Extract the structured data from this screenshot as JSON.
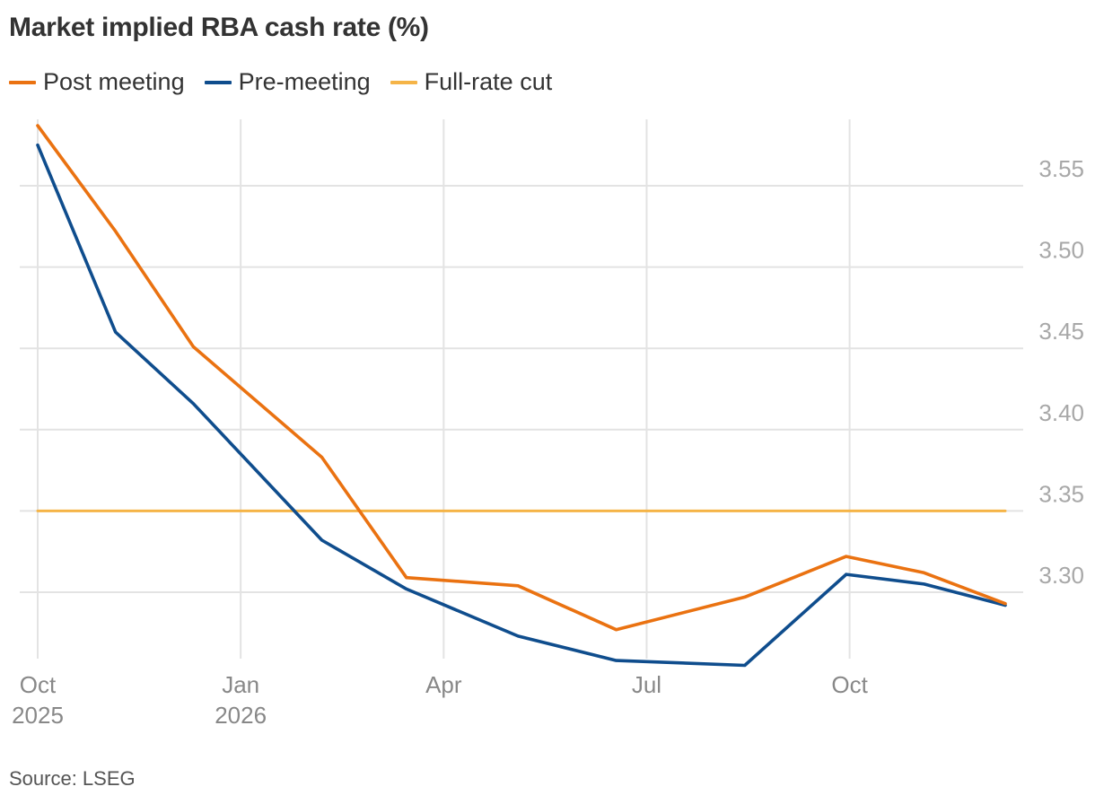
{
  "source": "Source: LSEG",
  "chart_data": {
    "type": "line",
    "title": "Market implied RBA cash rate (%)",
    "x_ticks": [
      {
        "month": 0,
        "line1": "Oct",
        "line2": "2025"
      },
      {
        "month": 3,
        "line1": "Jan",
        "line2": "2026"
      },
      {
        "month": 6,
        "line1": "Apr",
        "line2": ""
      },
      {
        "month": 9,
        "line1": "Jul",
        "line2": ""
      },
      {
        "month": 12,
        "line1": "Oct",
        "line2": ""
      }
    ],
    "y_ticks": [
      "3.30",
      "3.35",
      "3.40",
      "3.45",
      "3.50",
      "3.55"
    ],
    "ylim": [
      3.245,
      3.59
    ],
    "xlim": [
      0,
      14.5
    ],
    "x": [
      "2025-10",
      "2025-11",
      "2025-12",
      "2026-01",
      "2026-02",
      "2026-03",
      "2026-04",
      "2026-05",
      "2026-06",
      "2026-07",
      "2026-08",
      "2026-09",
      "2026-10",
      "2026-11"
    ],
    "series": [
      {
        "name": "Post meeting",
        "color": "#ea7211",
        "points": [
          [
            0,
            3.587
          ],
          [
            1.15,
            3.522
          ],
          [
            2.3,
            3.451
          ],
          [
            4.2,
            3.383
          ],
          [
            5.45,
            3.309
          ],
          [
            7.1,
            3.304
          ],
          [
            8.55,
            3.277
          ],
          [
            10.45,
            3.297
          ],
          [
            11.95,
            3.322
          ],
          [
            13.1,
            3.312
          ],
          [
            14.3,
            3.293
          ]
        ]
      },
      {
        "name": "Pre-meeting",
        "color": "#0f4d8d",
        "points": [
          [
            0,
            3.575
          ],
          [
            1.15,
            3.46
          ],
          [
            2.3,
            3.416
          ],
          [
            4.2,
            3.332
          ],
          [
            5.45,
            3.302
          ],
          [
            7.1,
            3.273
          ],
          [
            8.55,
            3.258
          ],
          [
            10.45,
            3.255
          ],
          [
            11.95,
            3.311
          ],
          [
            13.1,
            3.305
          ],
          [
            14.3,
            3.292
          ]
        ]
      },
      {
        "name": "Full-rate cut",
        "color": "#f5b447",
        "points": [
          [
            0,
            3.35
          ],
          [
            14.3,
            3.35
          ]
        ]
      }
    ],
    "grid": true,
    "legend_position": "top-left",
    "y_axis_side": "right"
  }
}
